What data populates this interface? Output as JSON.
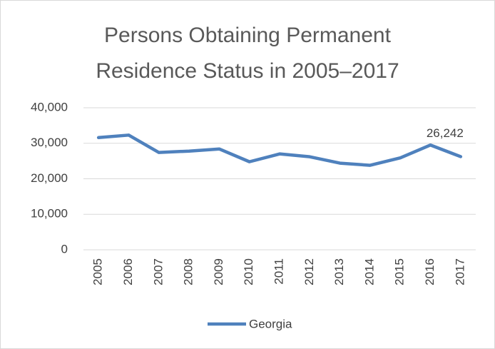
{
  "chart_data": {
    "type": "line",
    "title": "Persons Obtaining Permanent Residence Status in 2005–2017",
    "categories": [
      "2005",
      "2006",
      "2007",
      "2008",
      "2009",
      "2010",
      "2011",
      "2012",
      "2013",
      "2014",
      "2015",
      "2016",
      "2017"
    ],
    "series": [
      {
        "name": "Georgia",
        "color": "#4f81bd",
        "values": [
          31600,
          32300,
          27400,
          27800,
          28400,
          24800,
          27000,
          26200,
          24400,
          23800,
          25900,
          29500,
          26242
        ],
        "value_labels": [
          null,
          null,
          null,
          null,
          null,
          null,
          null,
          null,
          null,
          null,
          null,
          null,
          "26,242"
        ]
      }
    ],
    "ylim": [
      0,
      40000
    ],
    "yticks": [
      0,
      {
        "value": 10000,
        "label": "10,000"
      },
      {
        "value": 20000,
        "label": "20,000"
      },
      {
        "value": 30000,
        "label": "30,000"
      },
      {
        "value": 40000,
        "label": "40,000"
      }
    ],
    "grid": true,
    "legend": "bottom"
  }
}
